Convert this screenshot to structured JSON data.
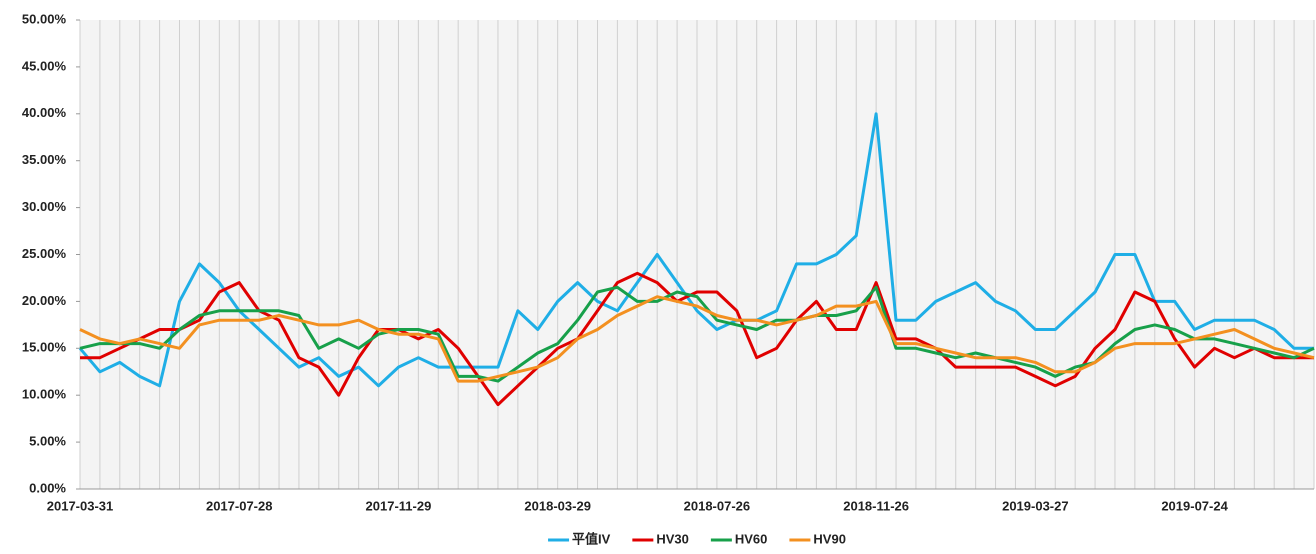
{
  "chart_data": {
    "type": "line",
    "categories": [
      "2017-03-31",
      null,
      null,
      null,
      null,
      null,
      null,
      null,
      "2017-07-28",
      null,
      null,
      null,
      null,
      null,
      null,
      null,
      "2017-11-29",
      null,
      null,
      null,
      null,
      null,
      null,
      null,
      "2018-03-29",
      null,
      null,
      null,
      null,
      null,
      null,
      null,
      "2018-07-26",
      null,
      null,
      null,
      null,
      null,
      null,
      null,
      "2018-11-26",
      null,
      null,
      null,
      null,
      null,
      null,
      null,
      "2019-03-27",
      null,
      null,
      null,
      null,
      null,
      null,
      null,
      "2019-07-24",
      null,
      null,
      null,
      null,
      null,
      null
    ],
    "series": [
      {
        "name": "平值IV",
        "color": "#1faee6",
        "values": [
          15,
          12.5,
          13.5,
          12,
          11,
          20,
          24,
          22,
          19,
          17,
          15,
          13,
          14,
          12,
          13,
          11,
          13,
          14,
          13,
          13,
          13,
          13,
          19,
          17,
          20,
          22,
          20,
          19,
          22,
          25,
          22,
          19,
          17,
          18,
          18,
          19,
          24,
          24,
          25,
          27,
          40,
          18,
          18,
          20,
          21,
          22,
          20,
          19,
          17,
          17,
          19,
          21,
          25,
          25,
          20,
          20,
          17,
          18,
          18,
          18,
          17,
          15,
          15
        ]
      },
      {
        "name": "HV30",
        "color": "#e00000",
        "values": [
          14,
          14,
          15,
          16,
          17,
          17,
          18,
          21,
          22,
          19,
          18,
          14,
          13,
          10,
          14,
          17,
          17,
          16,
          17,
          15,
          12,
          9,
          11,
          13,
          15,
          16,
          19,
          22,
          23,
          22,
          20,
          21,
          21,
          19,
          14,
          15,
          18,
          20,
          17,
          17,
          22,
          16,
          16,
          15,
          13,
          13,
          13,
          13,
          12,
          11,
          12,
          15,
          17,
          21,
          20,
          16,
          13,
          15,
          14,
          15,
          14,
          14,
          14
        ]
      },
      {
        "name": "HV60",
        "color": "#17a04a",
        "values": [
          15,
          15.5,
          15.5,
          15.5,
          15,
          17,
          18.5,
          19,
          19,
          19,
          19,
          18.5,
          15,
          16,
          15,
          16.5,
          17,
          17,
          16.5,
          12,
          12,
          11.5,
          13,
          14.5,
          15.5,
          18,
          21,
          21.5,
          20,
          20,
          21,
          20.5,
          18,
          17.5,
          17,
          18,
          18,
          18.5,
          18.5,
          19,
          21.5,
          15,
          15,
          14.5,
          14,
          14.5,
          14,
          13.5,
          13,
          12,
          13,
          13.5,
          15.5,
          17,
          17.5,
          17,
          16,
          16,
          15.5,
          15,
          14.5,
          14,
          15
        ]
      },
      {
        "name": "HV90",
        "color": "#f39020",
        "values": [
          17,
          16,
          15.5,
          16,
          15.5,
          15,
          17.5,
          18,
          18,
          18,
          18.5,
          18,
          17.5,
          17.5,
          18,
          17,
          16.5,
          16.5,
          16,
          11.5,
          11.5,
          12,
          12.5,
          13,
          14,
          16,
          17,
          18.5,
          19.5,
          20.5,
          20,
          19.5,
          18.5,
          18,
          18,
          17.5,
          18,
          18.5,
          19.5,
          19.5,
          20,
          15.5,
          15.5,
          15,
          14.5,
          14,
          14,
          14,
          13.5,
          12.5,
          12.5,
          13.5,
          15,
          15.5,
          15.5,
          15.5,
          16,
          16.5,
          17,
          16,
          15,
          14.5,
          14
        ]
      }
    ],
    "ylim": [
      0,
      50
    ],
    "yticks": [
      {
        "value": 0,
        "label": "0.00%"
      },
      {
        "value": 5,
        "label": "5.00%"
      },
      {
        "value": 10,
        "label": "10.00%"
      },
      {
        "value": 15,
        "label": "15.00%"
      },
      {
        "value": 20,
        "label": "20.00%"
      },
      {
        "value": 25,
        "label": "25.00%"
      },
      {
        "value": 30,
        "label": "30.00%"
      },
      {
        "value": 35,
        "label": "35.00%"
      },
      {
        "value": 40,
        "label": "40.00%"
      },
      {
        "value": 45,
        "label": "45.00%"
      },
      {
        "value": 50,
        "label": "50.00%"
      }
    ],
    "grid": "x",
    "legend": "bottom"
  }
}
